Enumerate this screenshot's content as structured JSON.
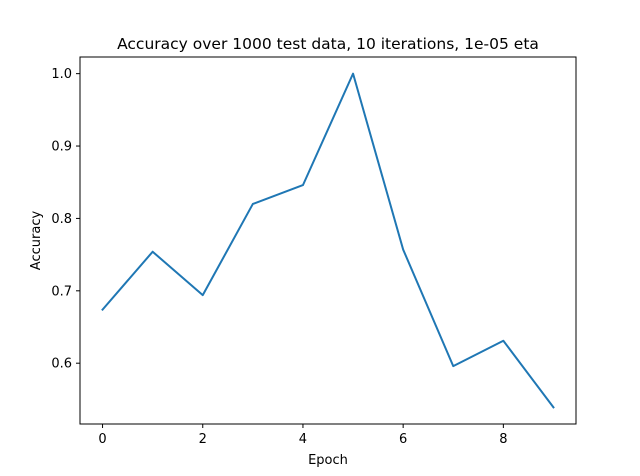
{
  "chart_data": {
    "type": "line",
    "title": "Accuracy over 1000 test data, 10 iterations, 1e-05 eta",
    "xlabel": "Epoch",
    "ylabel": "Accuracy",
    "x": [
      0,
      1,
      2,
      3,
      4,
      5,
      6,
      7,
      8,
      9
    ],
    "series": [
      {
        "name": "accuracy",
        "color": "#1f77b4",
        "values": [
          0.674,
          0.754,
          0.694,
          0.82,
          0.846,
          1.0,
          0.757,
          0.596,
          0.631,
          0.539
        ]
      }
    ],
    "xlim": [
      -0.45,
      9.45
    ],
    "ylim": [
      0.516,
      1.023
    ],
    "xticks": [
      0,
      2,
      4,
      6,
      8
    ],
    "xtick_labels": [
      "0",
      "2",
      "4",
      "6",
      "8"
    ],
    "yticks": [
      0.6,
      0.7,
      0.8,
      0.9,
      1.0
    ],
    "ytick_labels": [
      "0.6",
      "0.7",
      "0.8",
      "0.9",
      "1.0"
    ],
    "grid": false,
    "legend": "none"
  }
}
